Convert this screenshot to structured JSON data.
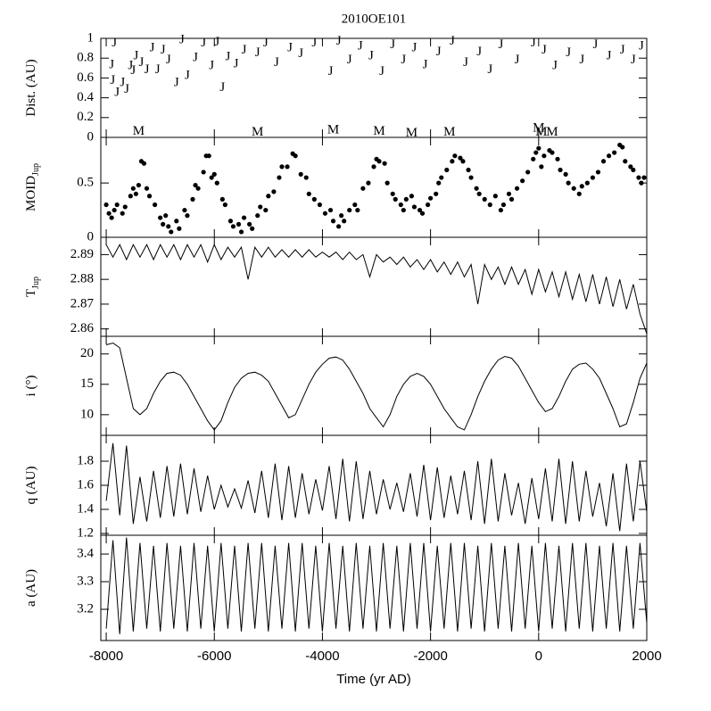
{
  "chart_data": [
    {
      "type": "scatter",
      "title": "2010OE101",
      "ylabel": "Dist. (AU)",
      "xlim": [
        -8100,
        2000
      ],
      "xticks": [
        -8000,
        -6000,
        -4000,
        -2000,
        0,
        2000
      ],
      "ylim": [
        0,
        1
      ],
      "yticks": [
        0,
        0.2,
        0.4,
        0.6,
        0.8,
        1
      ],
      "series": [
        {
          "name": "J",
          "color": "#000000",
          "x": [
            -7850,
            -7900,
            -7880,
            -7800,
            -7700,
            -7620,
            -7550,
            -7500,
            -7450,
            -7350,
            -7250,
            -7150,
            -7050,
            -6950,
            -6850,
            -6700,
            -6600,
            -6500,
            -6350,
            -6200,
            -6050,
            -5950,
            -5850,
            -5750,
            -5600,
            -5450,
            -5200,
            -5050,
            -4850,
            -4600,
            -4400,
            -4150,
            -3850,
            -3700,
            -3500,
            -3300,
            -3100,
            -2900,
            -2700,
            -2500,
            -2300,
            -2100,
            -1850,
            -1600,
            -1350,
            -1100,
            -900,
            -700,
            -400,
            -100,
            100,
            300,
            550,
            800,
            1050,
            1300,
            1550,
            1750,
            1900
          ],
          "values": [
            0.95,
            0.73,
            0.57,
            0.45,
            0.55,
            0.48,
            0.72,
            0.67,
            0.82,
            0.75,
            0.68,
            0.9,
            0.68,
            0.88,
            0.78,
            0.55,
            0.98,
            0.62,
            0.8,
            0.95,
            0.72,
            0.96,
            0.5,
            0.81,
            0.74,
            0.88,
            0.85,
            0.95,
            0.75,
            0.9,
            0.84,
            0.95,
            0.66,
            0.97,
            0.78,
            0.92,
            0.82,
            0.66,
            0.93,
            0.78,
            0.9,
            0.73,
            0.86,
            0.97,
            0.75,
            0.86,
            0.68,
            0.93,
            0.78,
            0.95,
            0.88,
            0.72,
            0.85,
            0.78,
            0.93,
            0.82,
            0.88,
            0.78,
            0.92
          ]
        },
        {
          "name": "M",
          "color": "#000000",
          "x": [
            -7400,
            -5200,
            -3800,
            -2950,
            -2350,
            -1650,
            0,
            50,
            250
          ],
          "values": [
            0.06,
            0.05,
            0.07,
            0.06,
            0.04,
            0.05,
            0.09,
            0.05,
            0.05
          ]
        }
      ]
    },
    {
      "type": "scatter",
      "ylabel": "MOID",
      "ylabel_sub": "Jup",
      "color": "#000000",
      "xlim": [
        -8100,
        2000
      ],
      "xticks": [
        -8000,
        -6000,
        -4000,
        -2000,
        0,
        2000
      ],
      "ylim": [
        0,
        0.92
      ],
      "yticks": [
        0,
        0.5
      ],
      "x": [
        -8000,
        -7950,
        -7900,
        -7850,
        -7800,
        -7700,
        -7650,
        -7550,
        -7500,
        -7450,
        -7400,
        -7350,
        -7300,
        -7250,
        -7200,
        -7100,
        -7000,
        -6950,
        -6900,
        -6850,
        -6800,
        -6700,
        -6650,
        -6550,
        -6500,
        -6400,
        -6350,
        -6300,
        -6200,
        -6150,
        -6100,
        -6050,
        -6000,
        -5950,
        -5850,
        -5800,
        -5700,
        -5650,
        -5550,
        -5500,
        -5450,
        -5350,
        -5300,
        -5200,
        -5150,
        -5050,
        -5000,
        -4900,
        -4800,
        -4750,
        -4650,
        -4550,
        -4500,
        -4400,
        -4300,
        -4250,
        -4150,
        -4050,
        -3950,
        -3850,
        -3800,
        -3700,
        -3650,
        -3600,
        -3500,
        -3400,
        -3350,
        -3250,
        -3150,
        -3050,
        -3000,
        -2950,
        -2850,
        -2800,
        -2700,
        -2650,
        -2550,
        -2500,
        -2450,
        -2350,
        -2300,
        -2200,
        -2150,
        -2050,
        -2000,
        -1900,
        -1850,
        -1800,
        -1700,
        -1600,
        -1550,
        -1450,
        -1400,
        -1300,
        -1250,
        -1150,
        -1100,
        -1000,
        -900,
        -800,
        -700,
        -650,
        -550,
        -500,
        -400,
        -300,
        -200,
        -100,
        -50,
        0,
        50,
        100,
        200,
        250,
        350,
        400,
        500,
        550,
        650,
        750,
        800,
        900,
        1000,
        1100,
        1200,
        1300,
        1400,
        1500,
        1550,
        1600,
        1700,
        1750,
        1850,
        1900,
        1950
      ],
      "values": [
        0.3,
        0.22,
        0.18,
        0.25,
        0.3,
        0.22,
        0.28,
        0.38,
        0.45,
        0.4,
        0.48,
        0.7,
        0.68,
        0.45,
        0.38,
        0.3,
        0.18,
        0.12,
        0.2,
        0.1,
        0.05,
        0.15,
        0.08,
        0.25,
        0.2,
        0.35,
        0.48,
        0.45,
        0.6,
        0.75,
        0.75,
        0.55,
        0.58,
        0.5,
        0.35,
        0.3,
        0.15,
        0.1,
        0.12,
        0.05,
        0.18,
        0.12,
        0.08,
        0.2,
        0.28,
        0.25,
        0.38,
        0.42,
        0.55,
        0.65,
        0.65,
        0.77,
        0.75,
        0.58,
        0.55,
        0.4,
        0.35,
        0.3,
        0.22,
        0.25,
        0.15,
        0.1,
        0.2,
        0.15,
        0.25,
        0.3,
        0.25,
        0.45,
        0.5,
        0.65,
        0.72,
        0.7,
        0.68,
        0.5,
        0.4,
        0.35,
        0.3,
        0.25,
        0.35,
        0.38,
        0.28,
        0.25,
        0.22,
        0.3,
        0.36,
        0.4,
        0.5,
        0.55,
        0.62,
        0.7,
        0.75,
        0.73,
        0.7,
        0.62,
        0.55,
        0.45,
        0.4,
        0.35,
        0.3,
        0.38,
        0.25,
        0.3,
        0.4,
        0.35,
        0.45,
        0.52,
        0.6,
        0.72,
        0.78,
        0.82,
        0.65,
        0.75,
        0.8,
        0.78,
        0.72,
        0.62,
        0.58,
        0.5,
        0.45,
        0.4,
        0.47,
        0.5,
        0.55,
        0.6,
        0.7,
        0.75,
        0.78,
        0.85,
        0.83,
        0.7,
        0.65,
        0.62,
        0.55,
        0.5,
        0.55
      ]
    },
    {
      "type": "line",
      "ylabel": "T",
      "ylabel_sub": "Jup",
      "color": "#000000",
      "xlim": [
        -8100,
        2000
      ],
      "xticks": [
        -8000,
        -6000,
        -4000,
        -2000,
        0,
        2000
      ],
      "ylim": [
        2.857,
        2.897
      ],
      "yticks": [
        2.86,
        2.87,
        2.88,
        2.89
      ],
      "x": [
        -8000,
        -7875,
        -7750,
        -7625,
        -7500,
        -7375,
        -7250,
        -7125,
        -7000,
        -6875,
        -6750,
        -6625,
        -6500,
        -6375,
        -6250,
        -6125,
        -6000,
        -5875,
        -5750,
        -5625,
        -5500,
        -5375,
        -5250,
        -5125,
        -5000,
        -4875,
        -4750,
        -4625,
        -4500,
        -4375,
        -4250,
        -4125,
        -4000,
        -3875,
        -3750,
        -3625,
        -3500,
        -3375,
        -3250,
        -3125,
        -3000,
        -2875,
        -2750,
        -2625,
        -2500,
        -2375,
        -2250,
        -2125,
        -2000,
        -1875,
        -1750,
        -1625,
        -1500,
        -1375,
        -1250,
        -1125,
        -1000,
        -875,
        -750,
        -625,
        -500,
        -375,
        -250,
        -125,
        0,
        125,
        250,
        375,
        500,
        625,
        750,
        875,
        1000,
        1125,
        1250,
        1375,
        1500,
        1625,
        1750,
        1875,
        2000
      ],
      "values": [
        2.894,
        2.889,
        2.894,
        2.888,
        2.894,
        2.889,
        2.894,
        2.888,
        2.894,
        2.889,
        2.894,
        2.888,
        2.894,
        2.889,
        2.894,
        2.887,
        2.894,
        2.888,
        2.893,
        2.889,
        2.893,
        2.88,
        2.893,
        2.889,
        2.893,
        2.889,
        2.892,
        2.889,
        2.892,
        2.889,
        2.892,
        2.889,
        2.891,
        2.889,
        2.891,
        2.888,
        2.891,
        2.888,
        2.89,
        2.881,
        2.89,
        2.887,
        2.889,
        2.886,
        2.889,
        2.885,
        2.888,
        2.884,
        2.888,
        2.883,
        2.887,
        2.882,
        2.887,
        2.881,
        2.886,
        2.87,
        2.886,
        2.88,
        2.885,
        2.878,
        2.885,
        2.878,
        2.884,
        2.874,
        2.884,
        2.875,
        2.883,
        2.873,
        2.883,
        2.872,
        2.882,
        2.871,
        2.882,
        2.87,
        2.881,
        2.869,
        2.88,
        2.868,
        2.878,
        2.866,
        2.858
      ]
    },
    {
      "type": "line",
      "ylabel": "i (°)",
      "color": "#000000",
      "xlim": [
        -8100,
        2000
      ],
      "xticks": [
        -8000,
        -6000,
        -4000,
        -2000,
        0,
        2000
      ],
      "ylim": [
        6.6,
        22.9
      ],
      "yticks": [
        10,
        15,
        20
      ],
      "x": [
        -8000,
        -7875,
        -7750,
        -7625,
        -7500,
        -7375,
        -7250,
        -7125,
        -7000,
        -6875,
        -6750,
        -6625,
        -6500,
        -6375,
        -6250,
        -6125,
        -6000,
        -5875,
        -5750,
        -5625,
        -5500,
        -5375,
        -5250,
        -5125,
        -5000,
        -4875,
        -4750,
        -4625,
        -4500,
        -4375,
        -4250,
        -4125,
        -4000,
        -3875,
        -3750,
        -3625,
        -3500,
        -3375,
        -3250,
        -3125,
        -3000,
        -2875,
        -2750,
        -2625,
        -2500,
        -2375,
        -2250,
        -2125,
        -2000,
        -1875,
        -1750,
        -1625,
        -1500,
        -1375,
        -1250,
        -1125,
        -1000,
        -875,
        -750,
        -625,
        -500,
        -375,
        -250,
        -125,
        0,
        125,
        250,
        375,
        500,
        625,
        750,
        875,
        1000,
        1125,
        1250,
        1375,
        1500,
        1625,
        1750,
        1875,
        2000
      ],
      "values": [
        21.5,
        21.8,
        21,
        16,
        11,
        10,
        11,
        13.5,
        15.5,
        16.8,
        17,
        16.5,
        15,
        13,
        11,
        9,
        7.5,
        9,
        12,
        14.5,
        16,
        16.8,
        17,
        16.5,
        15.5,
        13.5,
        11.5,
        9.5,
        10,
        12.5,
        15,
        17,
        18.3,
        19.3,
        19.5,
        19,
        17.5,
        15.5,
        13.5,
        11,
        9.5,
        8,
        10,
        13,
        15,
        16.3,
        16.8,
        16.3,
        15,
        13,
        11,
        9.5,
        8,
        7.5,
        10,
        13,
        15.5,
        17.5,
        19,
        19.6,
        19.3,
        18,
        16,
        14,
        12,
        10.5,
        11,
        13,
        15.5,
        17.5,
        18.3,
        18.5,
        17.5,
        16,
        13.5,
        11,
        8,
        8.5,
        12,
        16,
        18.5
      ]
    },
    {
      "type": "line",
      "ylabel": "q (AU)",
      "color": "#000000",
      "xlim": [
        -8100,
        2000
      ],
      "xticks": [
        -8000,
        -6000,
        -4000,
        -2000,
        0,
        2000
      ],
      "ylim": [
        1.185,
        2.015
      ],
      "yticks": [
        1.2,
        1.4,
        1.6,
        1.8
      ],
      "x": [
        -8000,
        -7875,
        -7750,
        -7625,
        -7500,
        -7375,
        -7250,
        -7125,
        -7000,
        -6875,
        -6750,
        -6625,
        -6500,
        -6375,
        -6250,
        -6125,
        -6000,
        -5875,
        -5750,
        -5625,
        -5500,
        -5375,
        -5250,
        -5125,
        -5000,
        -4875,
        -4750,
        -4625,
        -4500,
        -4375,
        -4250,
        -4125,
        -4000,
        -3875,
        -3750,
        -3625,
        -3500,
        -3375,
        -3250,
        -3125,
        -3000,
        -2875,
        -2750,
        -2625,
        -2500,
        -2375,
        -2250,
        -2125,
        -2000,
        -1875,
        -1750,
        -1625,
        -1500,
        -1375,
        -1250,
        -1125,
        -1000,
        -875,
        -750,
        -625,
        -500,
        -375,
        -250,
        -125,
        0,
        125,
        250,
        375,
        500,
        625,
        750,
        875,
        1000,
        1125,
        1250,
        1375,
        1500,
        1625,
        1750,
        1875,
        2000
      ],
      "values": [
        1.47,
        1.95,
        1.35,
        1.93,
        1.28,
        1.67,
        1.3,
        1.72,
        1.33,
        1.76,
        1.34,
        1.78,
        1.36,
        1.74,
        1.38,
        1.68,
        1.4,
        1.6,
        1.42,
        1.57,
        1.41,
        1.64,
        1.37,
        1.72,
        1.33,
        1.78,
        1.31,
        1.76,
        1.33,
        1.7,
        1.36,
        1.65,
        1.39,
        1.76,
        1.32,
        1.82,
        1.3,
        1.8,
        1.32,
        1.72,
        1.36,
        1.65,
        1.4,
        1.62,
        1.38,
        1.7,
        1.34,
        1.77,
        1.31,
        1.75,
        1.33,
        1.68,
        1.36,
        1.72,
        1.31,
        1.8,
        1.28,
        1.82,
        1.3,
        1.7,
        1.35,
        1.62,
        1.28,
        1.66,
        1.32,
        1.74,
        1.3,
        1.82,
        1.28,
        1.8,
        1.3,
        1.72,
        1.34,
        1.62,
        1.26,
        1.7,
        1.22,
        1.78,
        1.3,
        1.8,
        1.38
      ]
    },
    {
      "type": "line",
      "ylabel": "a (AU)",
      "xlabel": "Time (yr AD)",
      "color": "#000000",
      "xlim": [
        -8100,
        2000
      ],
      "xticks": [
        -8000,
        -6000,
        -4000,
        -2000,
        0,
        2000
      ],
      "ylim": [
        3.087,
        3.468
      ],
      "yticks": [
        3.2,
        3.3,
        3.4
      ],
      "x": [
        -8000,
        -7875,
        -7750,
        -7625,
        -7500,
        -7375,
        -7250,
        -7125,
        -7000,
        -6875,
        -6750,
        -6625,
        -6500,
        -6375,
        -6250,
        -6125,
        -6000,
        -5875,
        -5750,
        -5625,
        -5500,
        -5375,
        -5250,
        -5125,
        -5000,
        -4875,
        -4750,
        -4625,
        -4500,
        -4375,
        -4250,
        -4125,
        -4000,
        -3875,
        -3750,
        -3625,
        -3500,
        -3375,
        -3250,
        -3125,
        -3000,
        -2875,
        -2750,
        -2625,
        -2500,
        -2375,
        -2250,
        -2125,
        -2000,
        -1875,
        -1750,
        -1625,
        -1500,
        -1375,
        -1250,
        -1125,
        -1000,
        -875,
        -750,
        -625,
        -500,
        -375,
        -250,
        -125,
        0,
        125,
        250,
        375,
        500,
        625,
        750,
        875,
        1000,
        1125,
        1250,
        1375,
        1500,
        1625,
        1750,
        1875,
        2000
      ],
      "values": [
        3.13,
        3.45,
        3.11,
        3.46,
        3.12,
        3.44,
        3.13,
        3.43,
        3.12,
        3.44,
        3.13,
        3.43,
        3.12,
        3.44,
        3.13,
        3.43,
        3.12,
        3.44,
        3.13,
        3.43,
        3.12,
        3.44,
        3.13,
        3.44,
        3.12,
        3.43,
        3.13,
        3.44,
        3.12,
        3.44,
        3.13,
        3.43,
        3.12,
        3.44,
        3.13,
        3.43,
        3.12,
        3.44,
        3.13,
        3.43,
        3.12,
        3.44,
        3.13,
        3.43,
        3.12,
        3.44,
        3.13,
        3.44,
        3.12,
        3.43,
        3.13,
        3.44,
        3.12,
        3.44,
        3.13,
        3.43,
        3.12,
        3.44,
        3.13,
        3.43,
        3.12,
        3.44,
        3.13,
        3.43,
        3.12,
        3.44,
        3.13,
        3.43,
        3.12,
        3.44,
        3.13,
        3.44,
        3.12,
        3.43,
        3.13,
        3.44,
        3.12,
        3.43,
        3.13,
        3.44,
        3.15
      ]
    }
  ]
}
